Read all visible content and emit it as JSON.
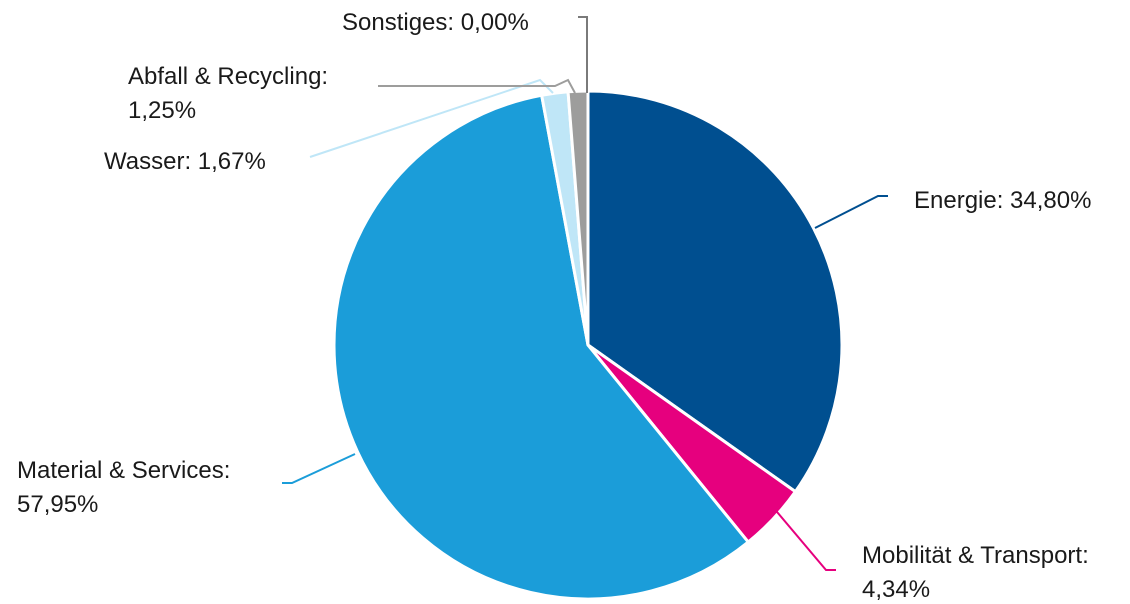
{
  "chart_data": {
    "type": "pie",
    "title": "",
    "slices": [
      {
        "label": "Energie",
        "value": 34.8,
        "value_label": "34,80%",
        "color": "#004f90"
      },
      {
        "label": "Mobilität & Transport",
        "value": 4.34,
        "value_label": "4,34%",
        "color": "#e6007e"
      },
      {
        "label": "Material & Services",
        "value": 57.95,
        "value_label": "57,95%",
        "color": "#1b9dd9"
      },
      {
        "label": "Wasser",
        "value": 1.67,
        "value_label": "1,67%",
        "color": "#bfe6f7"
      },
      {
        "label": "Abfall & Recycling",
        "value": 1.25,
        "value_label": "1,25%",
        "color": "#9d9d9c"
      },
      {
        "label": "Sonstiges",
        "value": 0.0,
        "value_label": "0,00%",
        "color": "#7a7a7a"
      }
    ]
  }
}
